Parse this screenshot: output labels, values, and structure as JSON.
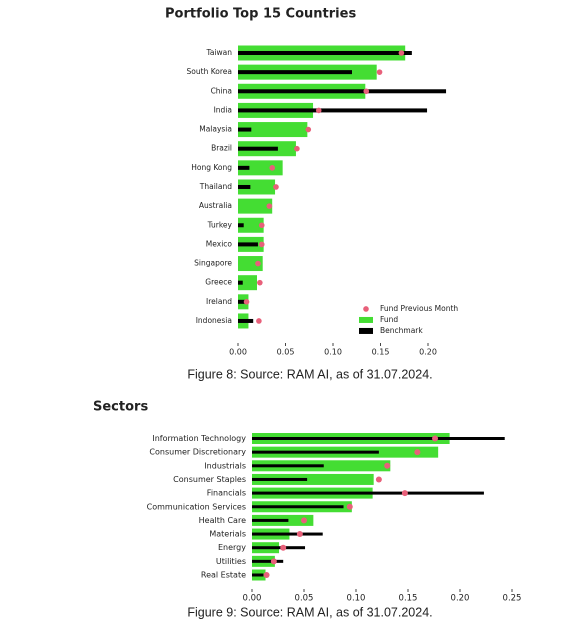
{
  "chart_data": [
    {
      "type": "bar",
      "title": "Portfolio Top 15 Countries",
      "caption": "Figure 8: Source: RAM AI, as of 31.07.2024.",
      "categories": [
        "Taiwan",
        "South Korea",
        "China",
        "India",
        "Malaysia",
        "Brazil",
        "Hong Kong",
        "Thailand",
        "Australia",
        "Turkey",
        "Mexico",
        "Singapore",
        "Greece",
        "Ireland",
        "Indonesia"
      ],
      "series": [
        {
          "name": "Fund Previous Month",
          "mark": "dot",
          "color": "#e8607a",
          "values": [
            0.172,
            0.149,
            0.135,
            0.085,
            0.074,
            0.062,
            0.036,
            0.04,
            0.033,
            0.025,
            0.025,
            0.021,
            0.023,
            0.009,
            0.022
          ]
        },
        {
          "name": "Fund",
          "mark": "bar",
          "color": "#44dd33",
          "values": [
            0.176,
            0.146,
            0.134,
            0.079,
            0.073,
            0.061,
            0.047,
            0.039,
            0.036,
            0.027,
            0.027,
            0.026,
            0.02,
            0.011,
            0.011
          ]
        },
        {
          "name": "Benchmark",
          "mark": "line",
          "color": "#000000",
          "values": [
            0.183,
            0.12,
            0.219,
            0.199,
            0.014,
            0.042,
            0.012,
            0.013,
            0,
            0.006,
            0.021,
            0,
            0.005,
            0.007,
            0.016
          ]
        }
      ],
      "xlim": [
        0,
        0.22
      ],
      "xticks": [
        {
          "value": 0,
          "label": "0.00"
        },
        {
          "value": 0.05,
          "label": "0.05"
        },
        {
          "value": 0.1,
          "label": "0.10"
        },
        {
          "value": 0.15,
          "label": "0.15"
        },
        {
          "value": 0.2,
          "label": "0.20"
        }
      ],
      "legend": "lower right"
    },
    {
      "type": "bar",
      "title": "Sectors",
      "caption": "Figure 9: Source: RAM AI, as of 31.07.2024.",
      "categories": [
        "Information Technology",
        "Consumer Discretionary",
        "Industrials",
        "Consumer Staples",
        "Financials",
        "Communication Services",
        "Health Care",
        "Materials",
        "Energy",
        "Utilities",
        "Real Estate"
      ],
      "series": [
        {
          "mark": "dot",
          "color": "#e8607a",
          "values": [
            0.176,
            0.159,
            0.13,
            0.122,
            0.147,
            0.094,
            0.05,
            0.046,
            0.03,
            0.021,
            0.014
          ]
        },
        {
          "mark": "bar",
          "color": "#44dd33",
          "values": [
            0.19,
            0.179,
            0.133,
            0.117,
            0.116,
            0.096,
            0.059,
            0.036,
            0.026,
            0.022,
            0.013
          ]
        },
        {
          "mark": "line",
          "color": "#000000",
          "values": [
            0.243,
            0.122,
            0.069,
            0.053,
            0.223,
            0.088,
            0.035,
            0.068,
            0.051,
            0.03,
            0.011
          ]
        }
      ],
      "xlim": [
        0,
        0.25
      ],
      "xticks": [
        {
          "value": 0,
          "label": "0.00"
        },
        {
          "value": 0.05,
          "label": "0.05"
        },
        {
          "value": 0.1,
          "label": "0.10"
        },
        {
          "value": 0.15,
          "label": "0.15"
        },
        {
          "value": 0.2,
          "label": "0.20"
        },
        {
          "value": 0.25,
          "label": "0.25"
        }
      ]
    }
  ]
}
